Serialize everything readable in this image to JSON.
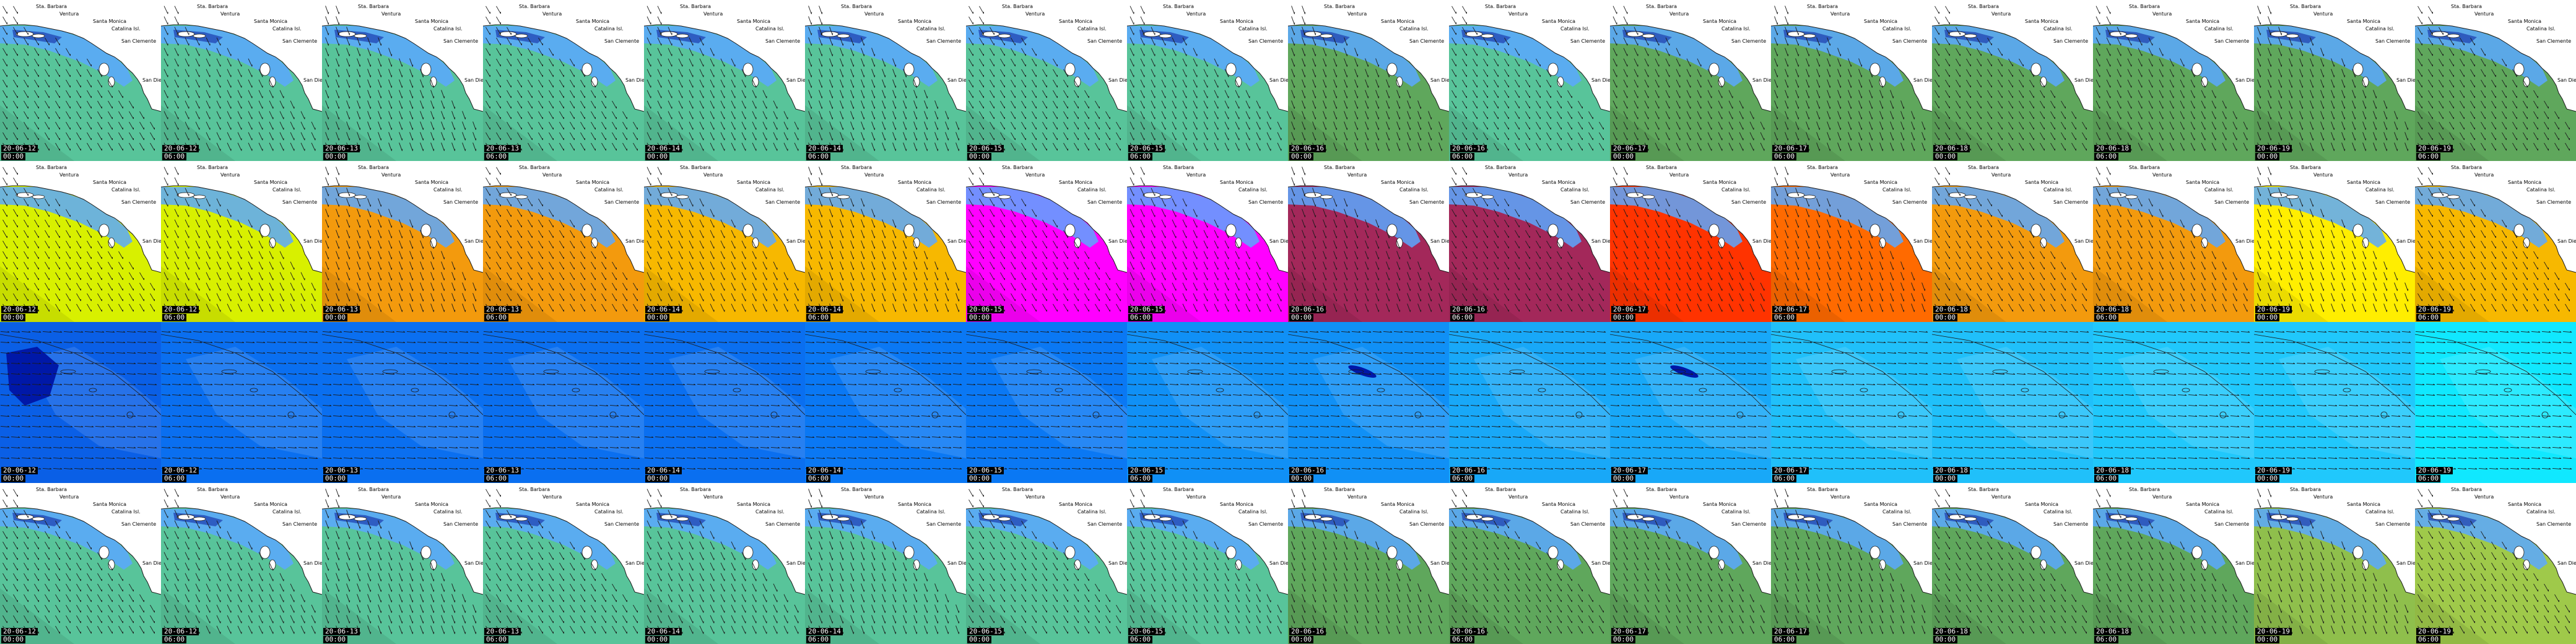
{
  "columns": 16,
  "rows": [
    {
      "id": "row-a",
      "type": "coastal",
      "cells": [
        {
          "date": "20-06-12",
          "hour": "00:00",
          "fill": "#58c49a"
        },
        {
          "date": "20-06-12",
          "hour": "06:00",
          "fill": "#58c49a"
        },
        {
          "date": "20-06-13",
          "hour": "00:00",
          "fill": "#58c49a"
        },
        {
          "date": "20-06-13",
          "hour": "06:00",
          "fill": "#58c49a"
        },
        {
          "date": "20-06-14",
          "hour": "00:00",
          "fill": "#58c49a"
        },
        {
          "date": "20-06-14",
          "hour": "06:00",
          "fill": "#58c49a"
        },
        {
          "date": "20-06-15",
          "hour": "00:00",
          "fill": "#58c49a"
        },
        {
          "date": "20-06-15",
          "hour": "06:00",
          "fill": "#58c49a"
        },
        {
          "date": "20-06-16",
          "hour": "00:00",
          "fill": "#5fa75c"
        },
        {
          "date": "20-06-16",
          "hour": "06:00",
          "fill": "#58c49a"
        },
        {
          "date": "20-06-17",
          "hour": "00:00",
          "fill": "#5fa75c"
        },
        {
          "date": "20-06-17",
          "hour": "06:00",
          "fill": "#5fa75c"
        },
        {
          "date": "20-06-18",
          "hour": "00:00",
          "fill": "#5fa75c"
        },
        {
          "date": "20-06-18",
          "hour": "06:00",
          "fill": "#5fa75c"
        },
        {
          "date": "20-06-19",
          "hour": "00:00",
          "fill": "#5fa75c"
        },
        {
          "date": "20-06-19",
          "hour": "06:00",
          "fill": "#5fa75c"
        }
      ]
    },
    {
      "id": "row-b",
      "type": "coastal",
      "cells": [
        {
          "date": "20-06-12",
          "hour": "00:00",
          "fill": "#d8f000"
        },
        {
          "date": "20-06-12",
          "hour": "06:00",
          "fill": "#d8f000"
        },
        {
          "date": "20-06-13",
          "hour": "00:00",
          "fill": "#f39a0d"
        },
        {
          "date": "20-06-13",
          "hour": "06:00",
          "fill": "#f39a0d"
        },
        {
          "date": "20-06-14",
          "hour": "00:00",
          "fill": "#f7b800"
        },
        {
          "date": "20-06-14",
          "hour": "06:00",
          "fill": "#f7b800"
        },
        {
          "date": "20-06-15",
          "hour": "00:00",
          "fill": "#ff00ff"
        },
        {
          "date": "20-06-15",
          "hour": "06:00",
          "fill": "#ff00ff"
        },
        {
          "date": "20-06-16",
          "hour": "00:00",
          "fill": "#a3285a"
        },
        {
          "date": "20-06-16",
          "hour": "06:00",
          "fill": "#a3285a"
        },
        {
          "date": "20-06-17",
          "hour": "00:00",
          "fill": "#ff3300"
        },
        {
          "date": "20-06-17",
          "hour": "06:00",
          "fill": "#ff6a00"
        },
        {
          "date": "20-06-18",
          "hour": "00:00",
          "fill": "#f39a0d"
        },
        {
          "date": "20-06-18",
          "hour": "06:00",
          "fill": "#f39a0d"
        },
        {
          "date": "20-06-19",
          "hour": "00:00",
          "fill": "#ffee00"
        },
        {
          "date": "20-06-19",
          "hour": "06:00",
          "fill": "#f7b800"
        }
      ]
    },
    {
      "id": "row-c",
      "type": "ocean",
      "cells": [
        {
          "date": "20-06-12",
          "hour": "00:00",
          "fill": "#0a5fe6"
        },
        {
          "date": "20-06-12",
          "hour": "06:00",
          "fill": "#0a6ff0"
        },
        {
          "date": "20-06-13",
          "hour": "00:00",
          "fill": "#0a6ff0"
        },
        {
          "date": "20-06-13",
          "hour": "06:00",
          "fill": "#0a6ff0"
        },
        {
          "date": "20-06-14",
          "hour": "00:00",
          "fill": "#0a6ff0"
        },
        {
          "date": "20-06-14",
          "hour": "06:00",
          "fill": "#0a78f4"
        },
        {
          "date": "20-06-15",
          "hour": "00:00",
          "fill": "#0a78f4"
        },
        {
          "date": "20-06-15",
          "hour": "06:00",
          "fill": "#1090f6"
        },
        {
          "date": "20-06-16",
          "hour": "00:00",
          "fill": "#1090f6"
        },
        {
          "date": "20-06-16",
          "hour": "06:00",
          "fill": "#18a8f8"
        },
        {
          "date": "20-06-17",
          "hour": "00:00",
          "fill": "#18a8f8"
        },
        {
          "date": "20-06-17",
          "hour": "06:00",
          "fill": "#20c0fa"
        },
        {
          "date": "20-06-18",
          "hour": "00:00",
          "fill": "#20c0fa"
        },
        {
          "date": "20-06-18",
          "hour": "06:00",
          "fill": "#20c8fc"
        },
        {
          "date": "20-06-19",
          "hour": "00:00",
          "fill": "#20c8fc"
        },
        {
          "date": "20-06-19",
          "hour": "06:00",
          "fill": "#10e8ff"
        }
      ]
    },
    {
      "id": "row-d",
      "type": "coastal",
      "cells": [
        {
          "date": "20-06-12",
          "hour": "00:00",
          "fill": "#58c49a"
        },
        {
          "date": "20-06-12",
          "hour": "06:00",
          "fill": "#58c49a"
        },
        {
          "date": "20-06-13",
          "hour": "00:00",
          "fill": "#58c49a"
        },
        {
          "date": "20-06-13",
          "hour": "06:00",
          "fill": "#58c49a"
        },
        {
          "date": "20-06-14",
          "hour": "00:00",
          "fill": "#58c49a"
        },
        {
          "date": "20-06-14",
          "hour": "06:00",
          "fill": "#58c49a"
        },
        {
          "date": "20-06-15",
          "hour": "00:00",
          "fill": "#58c49a"
        },
        {
          "date": "20-06-15",
          "hour": "06:00",
          "fill": "#58c49a"
        },
        {
          "date": "20-06-16",
          "hour": "00:00",
          "fill": "#5fa75c"
        },
        {
          "date": "20-06-16",
          "hour": "06:00",
          "fill": "#5fa75c"
        },
        {
          "date": "20-06-17",
          "hour": "00:00",
          "fill": "#5fa75c"
        },
        {
          "date": "20-06-17",
          "hour": "06:00",
          "fill": "#5fa75c"
        },
        {
          "date": "20-06-18",
          "hour": "00:00",
          "fill": "#5fa75c"
        },
        {
          "date": "20-06-18",
          "hour": "06:00",
          "fill": "#5fa75c"
        },
        {
          "date": "20-06-19",
          "hour": "00:00",
          "fill": "#8fbf4c"
        },
        {
          "date": "20-06-19",
          "hour": "06:00",
          "fill": "#9fc94a"
        }
      ]
    }
  ],
  "place_labels": [
    "Sta. Barbara",
    "Ventura",
    "Santa Monica",
    "Catalina Isl.",
    "San Clemente",
    "San Diego"
  ],
  "colors": {
    "land": "#ffffff",
    "island": "#5aa8ff",
    "island_dark": "#0b1e9c",
    "coastline": "#1a1a1a",
    "arrow": "#1a1a1a",
    "ocean_dark_patch": "#0018a8"
  }
}
